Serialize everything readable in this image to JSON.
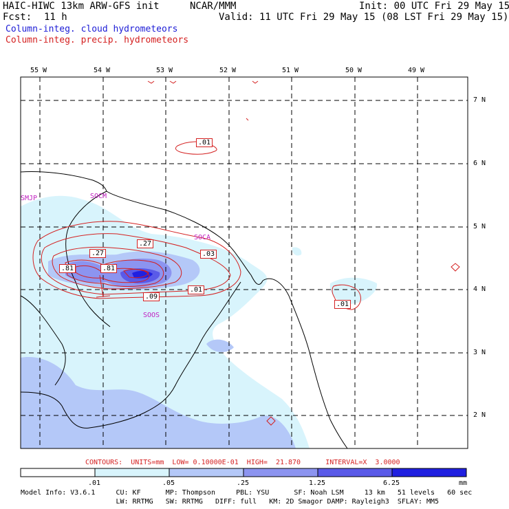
{
  "header": {
    "model_title": "HAIC-HIWC 13km ARW-GFS init",
    "org": "NCAR/MMM",
    "init": "Init: 00 UTC Fri 29 May 15",
    "fcst_label": "Fcst:",
    "fcst_value": "11 h",
    "valid": "Valid: 11 UTC Fri 29 May 15 (08 LST Fri 29 May 15)",
    "field_cloud": "Column-integ. cloud hydrometeors",
    "field_precip": "Column-integ. precip. hydrometeors"
  },
  "map": {
    "lon_labels": [
      "55 W",
      "54 W",
      "53 W",
      "52 W",
      "51 W",
      "50 W",
      "49 W"
    ],
    "lat_labels": [
      "7 N",
      "6 N",
      "5 N",
      "4 N",
      "3 N",
      "2 N"
    ],
    "stations": [
      "SMJP",
      "SOCM",
      "SOCA",
      "SOOS"
    ],
    "contour_labels": [
      ".01",
      ".27",
      ".27",
      ".03",
      ".81",
      ".81",
      ".09",
      ".01",
      ".01"
    ]
  },
  "contours_info": {
    "text": "CONTOURS:  UNITS=mm  LOW= 0.10000E-01  HIGH=  21.870      INTERVAL=X  3.0000"
  },
  "colorbar": {
    "labels": [
      ".01",
      ".05",
      ".25",
      "1.25",
      "6.25"
    ],
    "unit": "mm",
    "colors": [
      "#ffffff",
      "#d8f4fc",
      "#b4c8f8",
      "#8c94f0",
      "#5a5ae8",
      "#2020e0"
    ]
  },
  "footer": {
    "line1": "Model Info: V3.6.1     CU: KF      MP: Thompson     PBL: YSU      SF: Noah LSM     13 km   51 levels   60 sec",
    "line2": "                       LW: RRTMG   SW: RRTMG   DIFF: full   KM: 2D Smagor DAMP: Rayleigh3  SFLAY: MM5"
  }
}
